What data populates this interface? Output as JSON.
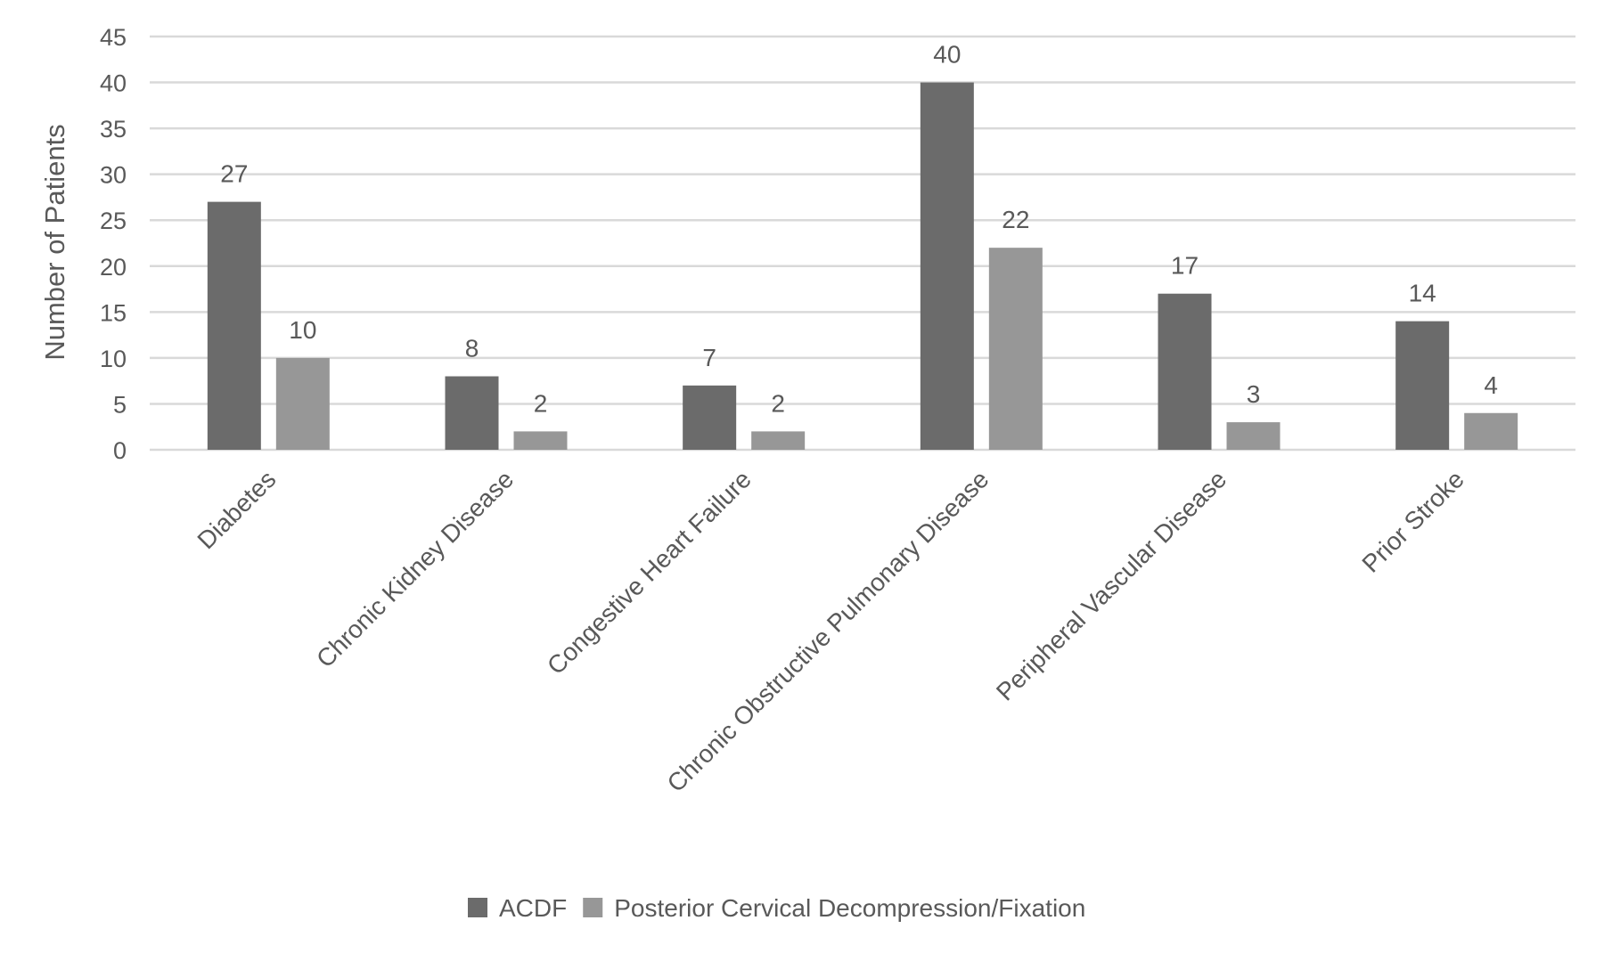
{
  "chart_data": {
    "type": "bar",
    "title": "",
    "xlabel": "",
    "ylabel": "Number of Patients",
    "ylim": [
      0,
      45
    ],
    "yticks": [
      0,
      5,
      10,
      15,
      20,
      25,
      30,
      35,
      40,
      45
    ],
    "grid": true,
    "legend": "bottom",
    "categories": [
      "Diabetes",
      "Chronic Kidney Disease",
      "Congestive Heart Failure",
      "Chronic Obstructive Pulmonary Disease",
      "Peripheral Vascular Disease",
      "Prior Stroke"
    ],
    "series": [
      {
        "name": "ACDF",
        "color": "#6b6b6b",
        "values": [
          27,
          8,
          7,
          40,
          17,
          14
        ]
      },
      {
        "name": "Posterior Cervical Decompression/Fixation",
        "color": "#979797",
        "values": [
          10,
          2,
          2,
          22,
          3,
          4
        ]
      }
    ],
    "colors": {
      "grid": "#d9d9d9",
      "text": "#595959"
    }
  }
}
